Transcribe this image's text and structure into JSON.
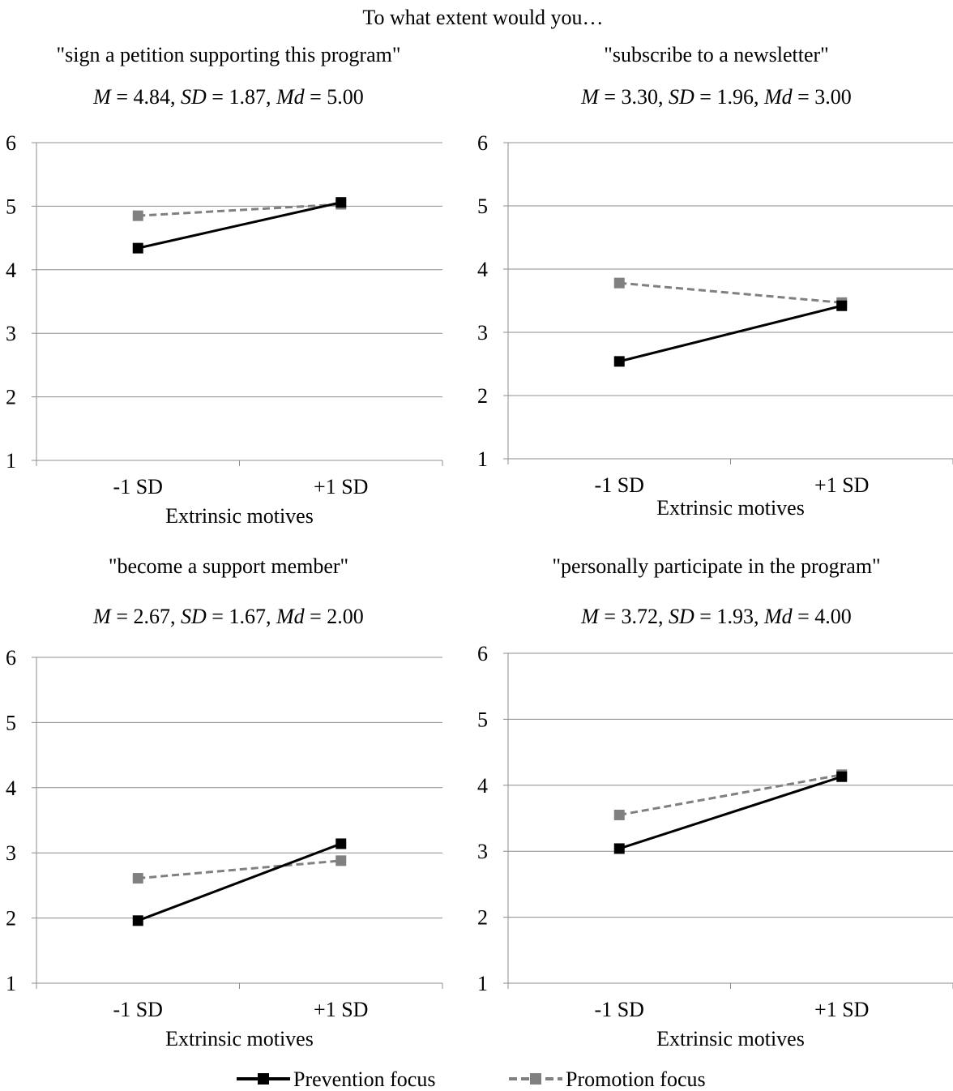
{
  "header": "To what extent would you…",
  "legend": {
    "items": [
      {
        "label": "Prevention focus",
        "color": "#000000",
        "dash": "solid",
        "marker": "square"
      },
      {
        "label": "Promotion focus",
        "color": "#808080",
        "dash": "dashed",
        "marker": "square"
      }
    ]
  },
  "chart_data": [
    {
      "type": "line",
      "title": "\"sign a petition supporting this program\"",
      "stats": {
        "M": "4.84",
        "SD": "1.87",
        "Md": "5.00"
      },
      "categories": [
        "-1 SD",
        "+1 SD"
      ],
      "xlabel": "Extrinsic motives",
      "ylabel": "",
      "ylim": [
        1,
        6
      ],
      "yticks": [
        "1",
        "2",
        "3",
        "4",
        "5",
        "6"
      ],
      "grid": "horizontal",
      "series": [
        {
          "name": "Prevention focus",
          "values": [
            4.34,
            5.06
          ]
        },
        {
          "name": "Promotion focus",
          "values": [
            4.85,
            5.03
          ]
        }
      ]
    },
    {
      "type": "line",
      "title": "\"subscribe to a newsletter\"",
      "stats": {
        "M": "3.30",
        "SD": "1.96",
        "Md": "3.00"
      },
      "categories": [
        "-1 SD",
        "+1 SD"
      ],
      "xlabel": "Extrinsic motives",
      "ylabel": "",
      "ylim": [
        1,
        6
      ],
      "yticks": [
        "1",
        "2",
        "3",
        "4",
        "5",
        "6"
      ],
      "grid": "horizontal",
      "series": [
        {
          "name": "Prevention focus",
          "values": [
            2.54,
            3.42
          ]
        },
        {
          "name": "Promotion focus",
          "values": [
            3.78,
            3.47
          ]
        }
      ]
    },
    {
      "type": "line",
      "title": "\"become a support member\"",
      "stats": {
        "M": "2.67",
        "SD": "1.67",
        "Md": "2.00"
      },
      "categories": [
        "-1 SD",
        "+1 SD"
      ],
      "xlabel": "Extrinsic motives",
      "ylabel": "",
      "ylim": [
        1,
        6
      ],
      "yticks": [
        "1",
        "2",
        "3",
        "4",
        "5",
        "6"
      ],
      "grid": "horizontal",
      "series": [
        {
          "name": "Prevention focus",
          "values": [
            1.96,
            3.14
          ]
        },
        {
          "name": "Promotion focus",
          "values": [
            2.61,
            2.88
          ]
        }
      ]
    },
    {
      "type": "line",
      "title": "\"personally participate in the program\"",
      "stats": {
        "M": "3.72",
        "SD": "1.93",
        "Md": "4.00"
      },
      "categories": [
        "-1 SD",
        "+1 SD"
      ],
      "xlabel": "Extrinsic motives",
      "ylabel": "",
      "ylim": [
        1,
        6
      ],
      "yticks": [
        "1",
        "2",
        "3",
        "4",
        "5",
        "6"
      ],
      "grid": "horizontal",
      "series": [
        {
          "name": "Prevention focus",
          "values": [
            3.04,
            4.13
          ]
        },
        {
          "name": "Promotion focus",
          "values": [
            3.55,
            4.16
          ]
        }
      ]
    }
  ]
}
